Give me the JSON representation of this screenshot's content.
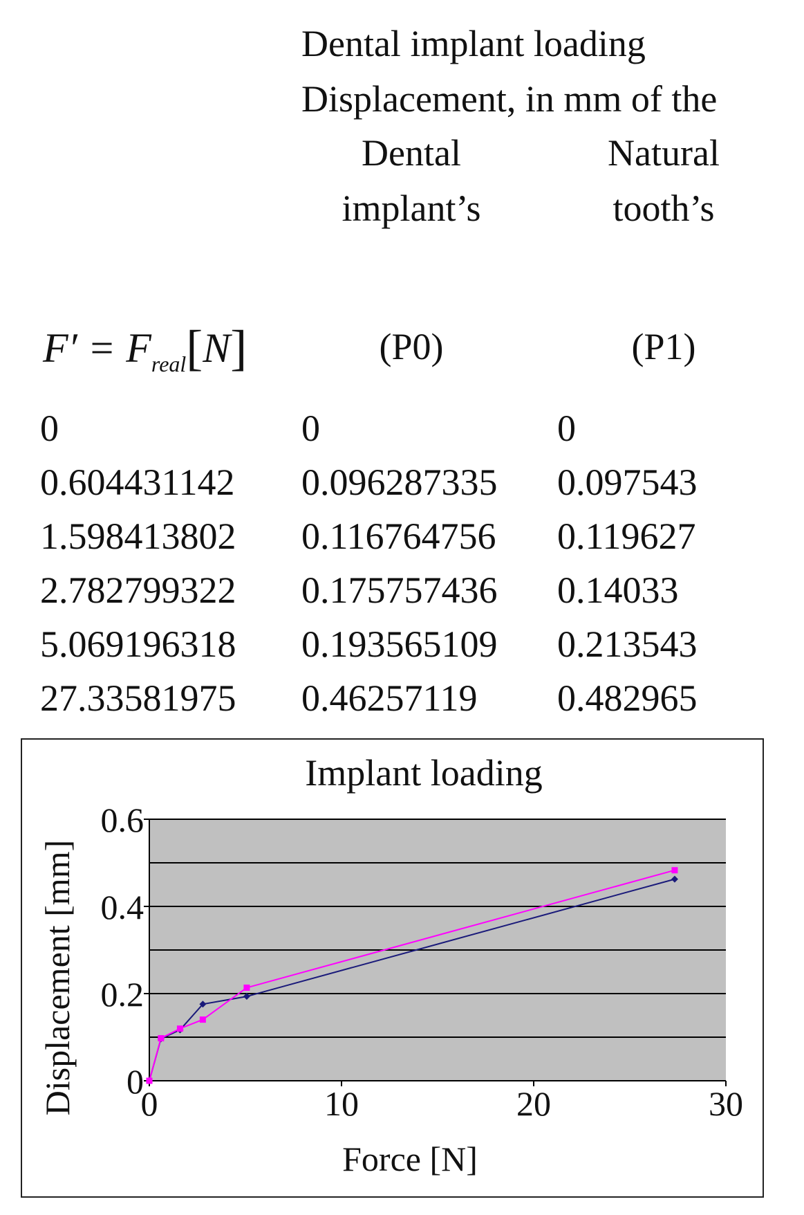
{
  "table": {
    "title": "Dental implant loading",
    "subtitle": "Displacement, in mm of the",
    "col1_header": {
      "line1": "Dental",
      "line2": "implant’s",
      "code": "(P0)"
    },
    "col2_header": {
      "line1": "Natural",
      "line2": "tooth’s",
      "code": "(P1)"
    },
    "formula": {
      "lhs": "F′ = F",
      "sub": "real",
      "unit": "N"
    },
    "rows": [
      [
        "0",
        "0",
        "0"
      ],
      [
        "0.604431142",
        "0.096287335",
        "0.097543"
      ],
      [
        "1.598413802",
        "0.116764756",
        "0.119627"
      ],
      [
        "2.782799322",
        "0.175757436",
        "0.14033"
      ],
      [
        "5.069196318",
        "0.193565109",
        "0.213543"
      ],
      [
        "27.33581975",
        "0.46257119",
        "0.482965"
      ]
    ]
  },
  "chart_data": {
    "type": "line",
    "title": "Implant loading",
    "xlabel": "Force [N]",
    "ylabel": "Displacement [mm]",
    "xlim": [
      0,
      30
    ],
    "ylim": [
      0,
      0.6
    ],
    "xticks": [
      "0",
      "10",
      "20",
      "30"
    ],
    "yticks": [
      "0",
      "0.2",
      "0.4",
      "0.6"
    ],
    "grid": true,
    "plot_background": "#c0c0c0",
    "series": [
      {
        "color": "#1a1a7a",
        "x": [
          0,
          0.604431142,
          1.598413802,
          2.782799322,
          5.069196318,
          27.33581975
        ],
        "y": [
          0,
          0.096287335,
          0.116764756,
          0.175757436,
          0.193565109,
          0.46257119
        ]
      },
      {
        "color": "#ff00ff",
        "x": [
          0,
          0.604431142,
          1.598413802,
          2.782799322,
          5.069196318,
          27.33581975
        ],
        "y": [
          0,
          0.097543,
          0.119627,
          0.14033,
          0.213543,
          0.482965
        ]
      }
    ]
  }
}
